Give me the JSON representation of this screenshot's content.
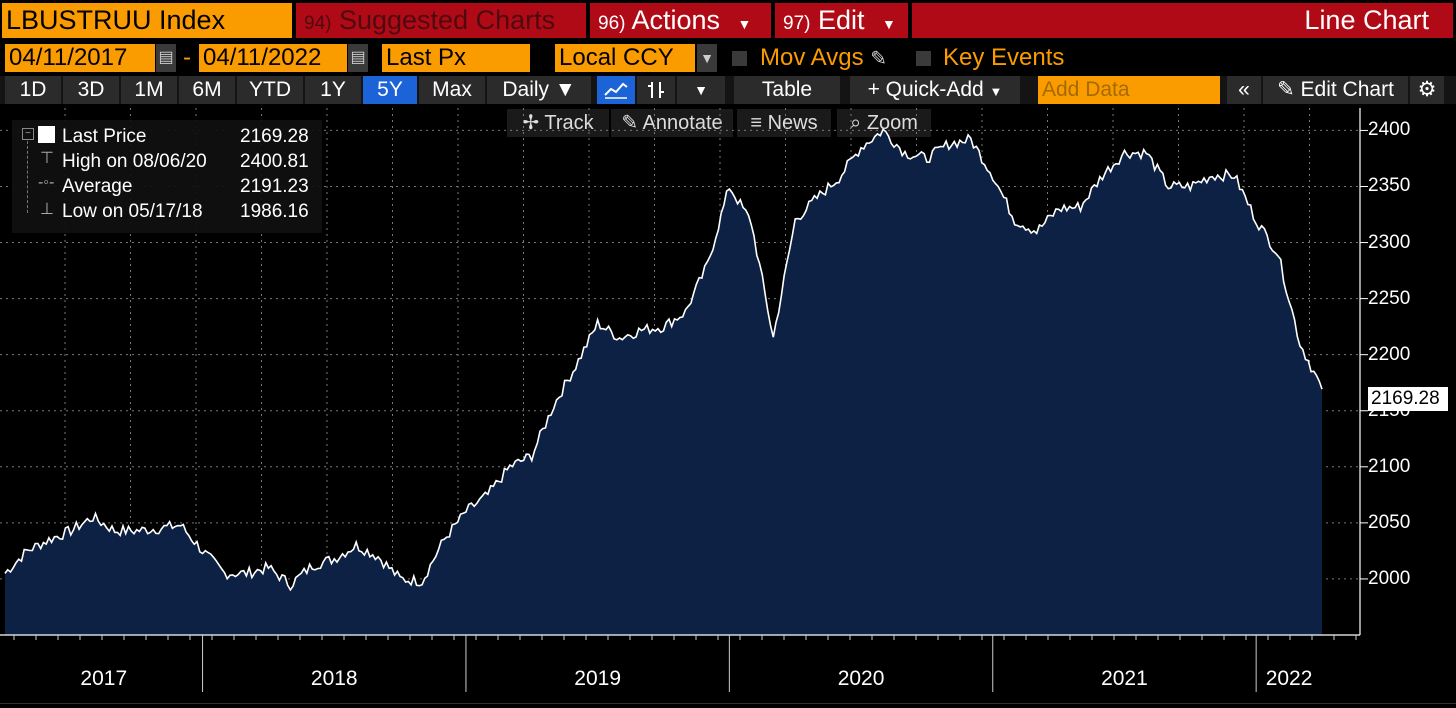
{
  "toolbar": {
    "ticker": "LBUSTRUU Index",
    "suggested_num": "94)",
    "suggested_label": "Suggested Charts",
    "actions_num": "96)",
    "actions_label": "Actions",
    "edit_num": "97)",
    "edit_label": "Edit",
    "view_title": "Line Chart"
  },
  "settings_row": {
    "start_date": "04/11/2017",
    "separator": "-",
    "end_date": "04/11/2022",
    "field": "Last Px",
    "currency": "Local CCY",
    "mov_avgs": "Mov Avgs",
    "key_events": "Key Events"
  },
  "periods": [
    "1D",
    "3D",
    "1M",
    "6M",
    "YTD",
    "1Y",
    "5Y",
    "Max"
  ],
  "period_selected": "5Y",
  "controls": {
    "frequency": "Daily ▼",
    "table": "Table",
    "quick_add": "+ Quick-Add",
    "add_data_placeholder": "Add Data",
    "edit_chart": "Edit Chart"
  },
  "tools": {
    "track": "Track",
    "annotate": "Annotate",
    "news": "News",
    "zoom": "Zoom"
  },
  "legend": {
    "last_label": "Last Price",
    "last_value": "2169.28",
    "high_label": "High on 08/06/20",
    "high_value": "2400.81",
    "avg_label": "Average",
    "avg_value": "2191.23",
    "low_label": "Low on 05/17/18",
    "low_value": "1986.16"
  },
  "colors": {
    "orange": "#fa9b00",
    "red": "#b10a17",
    "fill": "#0c2143",
    "line": "#ffffff",
    "selected_blue": "#1d63d8"
  },
  "chart_data": {
    "type": "area",
    "x": [
      "2017-04",
      "2017-05",
      "2017-06",
      "2017-07",
      "2017-08",
      "2017-09",
      "2017-10",
      "2017-11",
      "2017-12",
      "2018-01",
      "2018-02",
      "2018-03",
      "2018-04",
      "2018-05",
      "2018-06",
      "2018-07",
      "2018-08",
      "2018-09",
      "2018-10",
      "2018-11",
      "2018-12",
      "2019-01",
      "2019-02",
      "2019-03",
      "2019-04",
      "2019-05",
      "2019-06",
      "2019-07",
      "2019-08",
      "2019-09",
      "2019-10",
      "2019-11",
      "2019-12",
      "2020-01",
      "2020-02",
      "2020-03",
      "2020-04",
      "2020-05",
      "2020-06",
      "2020-07",
      "2020-08",
      "2020-09",
      "2020-10",
      "2020-11",
      "2020-12",
      "2021-01",
      "2021-02",
      "2021-03",
      "2021-04",
      "2021-05",
      "2021-06",
      "2021-07",
      "2021-08",
      "2021-09",
      "2021-10",
      "2021-11",
      "2021-12",
      "2022-01",
      "2022-02",
      "2022-03",
      "2022-04"
    ],
    "y": [
      2005,
      2025,
      2035,
      2043,
      2055,
      2043,
      2043,
      2045,
      2048,
      2025,
      2005,
      2005,
      2010,
      1995,
      2012,
      2018,
      2030,
      2020,
      2000,
      1998,
      2035,
      2060,
      2075,
      2100,
      2110,
      2155,
      2190,
      2228,
      2215,
      2222,
      2225,
      2238,
      2280,
      2350,
      2318,
      2215,
      2320,
      2340,
      2358,
      2385,
      2400,
      2380,
      2375,
      2388,
      2392,
      2360,
      2320,
      2310,
      2330,
      2332,
      2360,
      2380,
      2380,
      2350,
      2350,
      2360,
      2360,
      2320,
      2290,
      2210,
      2169.28
    ],
    "ylim": [
      1950,
      2420
    ],
    "yticks": [
      2000,
      2050,
      2100,
      2150,
      2200,
      2250,
      2300,
      2350,
      2400
    ],
    "xticks": [
      "2017",
      "2018",
      "2019",
      "2020",
      "2021",
      "2022"
    ],
    "last_value": "2169.28",
    "grid": true
  }
}
